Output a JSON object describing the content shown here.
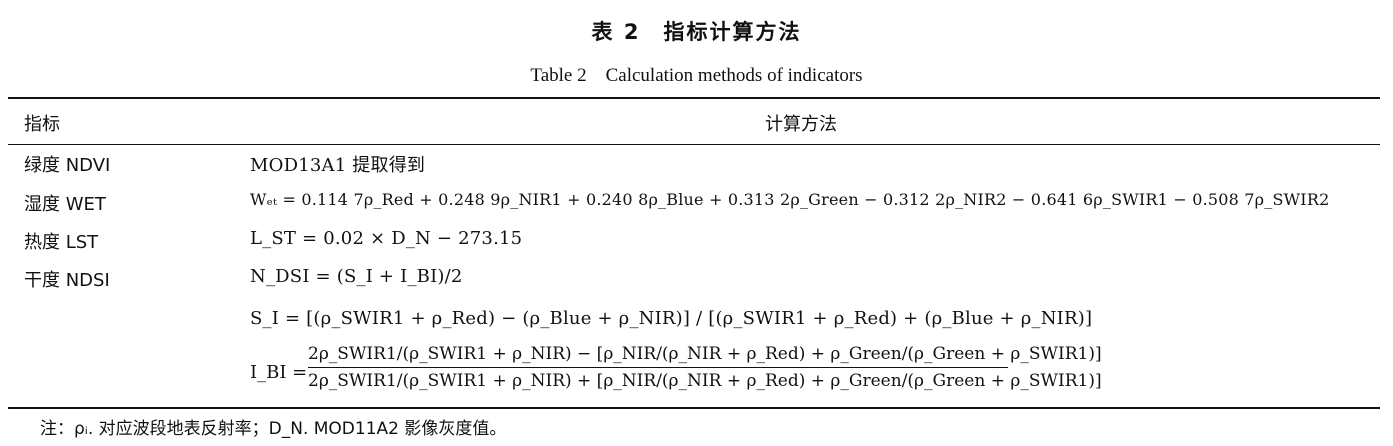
{
  "title_cn": "表 2　指标计算方法",
  "title_en": "Table 2　Calculation methods of indicators",
  "header": {
    "indicator": "指标",
    "method": "计算方法"
  },
  "rows": [
    {
      "indicator": "绿度 NDVI",
      "method": "MOD13A1 提取得到"
    },
    {
      "indicator": "湿度 WET",
      "method": "Wₑₜ = 0.114 7ρ_Red + 0.248 9ρ_NIR1 + 0.240 8ρ_Blue + 0.313 2ρ_Green − 0.312 2ρ_NIR2 − 0.641 6ρ_SWIR1 − 0.508 7ρ_SWIR2"
    },
    {
      "indicator": "热度 LST",
      "method": "L_ST = 0.02 × D_N − 273.15"
    },
    {
      "indicator": "干度 NDSI",
      "method": "N_DSI = (S_I + I_BI)/2"
    }
  ],
  "si_formula": "S_I = [(ρ_SWIR1 + ρ_Red) − (ρ_Blue + ρ_NIR)] / [(ρ_SWIR1 + ρ_Red) + (ρ_Blue + ρ_NIR)]",
  "ibi_formula": {
    "lhs": "I_BI =",
    "numerator": "2ρ_SWIR1/(ρ_SWIR1 + ρ_NIR) − [ρ_NIR/(ρ_NIR + ρ_Red) + ρ_Green/(ρ_Green + ρ_SWIR1)]",
    "denominator": "2ρ_SWIR1/(ρ_SWIR1 + ρ_NIR) + [ρ_NIR/(ρ_NIR + ρ_Red) + ρ_Green/(ρ_Green + ρ_SWIR1)]"
  },
  "note": "注：ρᵢ. 对应波段地表反射率；D_N. MOD11A2 影像灰度值。"
}
